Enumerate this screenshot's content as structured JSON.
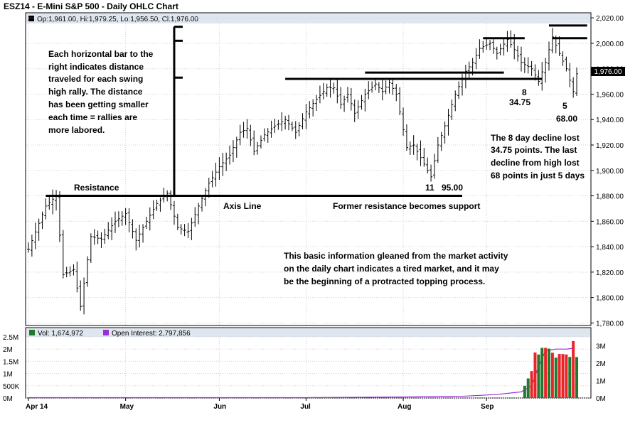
{
  "window": {
    "title": "ESZ14 - E-Mini S&P 500 - Daily OHLC Chart"
  },
  "price_legend": {
    "text": "Op:1,961.00, Hi:1,979.25, Lo:1,956.50, Cl:1,976.00",
    "marker_color": "#000000"
  },
  "volume_legend": {
    "vol_label": "Vol: 1,674,972",
    "vol_color": "#1f7a2e",
    "oi_label": "Open Interest: 2,797,856",
    "oi_color": "#9b2fd6"
  },
  "last_price_tag": "1,976.00",
  "annotations": {
    "left_note": [
      "Each horizontal bar to the",
      "right indicates distance",
      "traveled for each swing",
      "high rally.  The distance",
      "has been getting smaller",
      "each time = rallies are",
      "more labored."
    ],
    "resistance": "Resistance",
    "axis_line": "Axis Line",
    "former_resistance": "Former resistance becomes support",
    "low_label_days": "11",
    "low_label_points": "95.00",
    "decline8_days": "8",
    "decline8_points": "34.75",
    "decline5_days": "5",
    "decline5_points": "68.00",
    "right_note": [
      "The 8 day decline lost",
      "34.75 points.  The last",
      "decline from high lost",
      "68 points in just 5 days"
    ],
    "bottom_note": [
      "This basic information gleaned from the market activity",
      "on the daily chart indicates a tired market, and it may",
      "be the beginning of a protracted topping process."
    ]
  },
  "chart_data": [
    {
      "type": "ohlc",
      "title": "ESZ14 - E-Mini S&P 500 - Daily OHLC Chart",
      "x_ticks": [
        "Apr 14",
        "May",
        "Jun",
        "Jul",
        "Aug",
        "Sep"
      ],
      "y_ticks": [
        "2,020.00",
        "2,000.00",
        "1,980.00",
        "1,960.00",
        "1,940.00",
        "1,920.00",
        "1,900.00",
        "1,880.00",
        "1,860.00",
        "1,840.00",
        "1,820.00",
        "1,800.00",
        "1,780.00"
      ],
      "ylim": [
        1778,
        2024
      ],
      "grid": true,
      "last_close": 1976,
      "anchors": [
        [
          0,
          1838
        ],
        [
          5,
          1872
        ],
        [
          8,
          1880
        ],
        [
          10,
          1818
        ],
        [
          13,
          1822
        ],
        [
          15,
          1793
        ],
        [
          18,
          1848
        ],
        [
          21,
          1846
        ],
        [
          25,
          1860
        ],
        [
          28,
          1866
        ],
        [
          31,
          1845
        ],
        [
          34,
          1860
        ],
        [
          37,
          1874
        ],
        [
          40,
          1882
        ],
        [
          43,
          1855
        ],
        [
          46,
          1852
        ],
        [
          49,
          1872
        ],
        [
          52,
          1890
        ],
        [
          55,
          1903
        ],
        [
          58,
          1912
        ],
        [
          61,
          1930
        ],
        [
          63,
          1933
        ],
        [
          65,
          1915
        ],
        [
          68,
          1928
        ],
        [
          71,
          1935
        ],
        [
          74,
          1940
        ],
        [
          77,
          1930
        ],
        [
          80,
          1946
        ],
        [
          83,
          1956
        ],
        [
          86,
          1965
        ],
        [
          88,
          1965
        ],
        [
          90,
          1952
        ],
        [
          92,
          1960
        ],
        [
          94,
          1945
        ],
        [
          97,
          1960
        ],
        [
          100,
          1968
        ],
        [
          102,
          1962
        ],
        [
          104,
          1969
        ],
        [
          106,
          1960
        ],
        [
          109,
          1918
        ],
        [
          111,
          1920
        ],
        [
          114,
          1905
        ],
        [
          116,
          1895
        ],
        [
          118,
          1920
        ],
        [
          120,
          1935
        ],
        [
          123,
          1960
        ],
        [
          126,
          1978
        ],
        [
          128,
          1985
        ],
        [
          130,
          1996
        ],
        [
          133,
          2000
        ],
        [
          135,
          1992
        ],
        [
          138,
          2003
        ],
        [
          140,
          1995
        ],
        [
          142,
          1985
        ],
        [
          145,
          1980
        ],
        [
          147,
          1970
        ],
        [
          149,
          1985
        ],
        [
          151,
          2005
        ],
        [
          153,
          1992
        ],
        [
          155,
          1980
        ],
        [
          157,
          1962
        ],
        [
          158,
          1976
        ]
      ],
      "swing_bars": [
        {
          "level": 1880,
          "from_day": 5,
          "to_day": 125
        },
        {
          "level": 1972,
          "from_day": 74,
          "to_day": 148
        },
        {
          "level": 1977,
          "from_day": 97,
          "to_day": 137
        },
        {
          "level": 2004,
          "from_day": 131,
          "to_day": 143
        },
        {
          "level": 2014,
          "from_day": 150,
          "to_day": 161
        },
        {
          "level": 2004,
          "from_day": 151,
          "to_day": 161
        }
      ],
      "vertical_bar": {
        "day": 42,
        "from": 1880,
        "to": 2013,
        "ticks": [
          2013,
          2002,
          1973
        ]
      }
    },
    {
      "type": "bar",
      "title": "Volume / Open Interest",
      "left_ticks": [
        "2.5M",
        "2M",
        "1.5M",
        "1M",
        "500K",
        "0M"
      ],
      "right_ticks": [
        "3M",
        "2M",
        "1M",
        "0M"
      ],
      "volume_ylim": [
        0,
        2500000
      ],
      "oi_ylim": [
        0,
        3500000
      ],
      "volume_series": [
        {
          "day": 143,
          "value": 500000,
          "color": "green"
        },
        {
          "day": 144,
          "value": 800000,
          "color": "green"
        },
        {
          "day": 145,
          "value": 1100000,
          "color": "red"
        },
        {
          "day": 146,
          "value": 1860000,
          "color": "red"
        },
        {
          "day": 147,
          "value": 1780000,
          "color": "green"
        },
        {
          "day": 148,
          "value": 2050000,
          "color": "green"
        },
        {
          "day": 149,
          "value": 2050000,
          "color": "red"
        },
        {
          "day": 150,
          "value": 2020000,
          "color": "green"
        },
        {
          "day": 151,
          "value": 1850000,
          "color": "red"
        },
        {
          "day": 152,
          "value": 1650000,
          "color": "green"
        },
        {
          "day": 153,
          "value": 1800000,
          "color": "red"
        },
        {
          "day": 154,
          "value": 1800000,
          "color": "red"
        },
        {
          "day": 155,
          "value": 1780000,
          "color": "red"
        },
        {
          "day": 156,
          "value": 1680000,
          "color": "green"
        },
        {
          "day": 157,
          "value": 2330000,
          "color": "red"
        },
        {
          "day": 158,
          "value": 1674972,
          "color": "green"
        }
      ],
      "open_interest": [
        [
          0,
          20000
        ],
        [
          80,
          20000
        ],
        [
          110,
          60000
        ],
        [
          125,
          100000
        ],
        [
          135,
          200000
        ],
        [
          142,
          350000
        ],
        [
          145,
          700000
        ],
        [
          147,
          1800000
        ],
        [
          149,
          2700000
        ],
        [
          152,
          2800000
        ],
        [
          155,
          2800000
        ],
        [
          157,
          2850000
        ]
      ]
    }
  ]
}
